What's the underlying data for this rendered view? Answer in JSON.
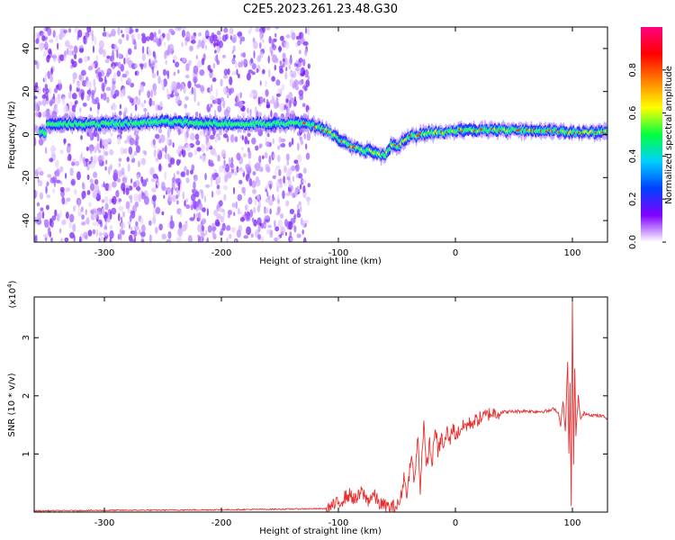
{
  "title": "C2E5.2023.261.23.48.G30",
  "chart_data": [
    {
      "type": "heatmap",
      "xlabel": "Height of straight line (km)",
      "ylabel": "Frequency (Hz)",
      "xlim": [
        -360,
        130
      ],
      "ylim": [
        -50,
        50
      ],
      "xticks": [
        -300,
        -200,
        -100,
        0,
        100
      ],
      "yticks": [
        -40,
        -20,
        0,
        20,
        40
      ],
      "colorbar": {
        "label": "Normalized spectral amplitude",
        "range": [
          0,
          1
        ],
        "ticks": [
          "0.0",
          "0.2",
          "0.4",
          "0.6",
          "0.8"
        ],
        "tick_values": [
          0,
          0.2,
          0.4,
          0.6,
          0.8
        ],
        "colors": [
          "#ffffff",
          "#8000ff",
          "#0040ff",
          "#00d0ff",
          "#00ff40",
          "#ffff00",
          "#ff8000",
          "#ff0000",
          "#ff0080"
        ]
      },
      "ridge": {
        "x": [
          -350,
          -300,
          -250,
          -200,
          -150,
          -130,
          -120,
          -110,
          -100,
          -90,
          -80,
          -70,
          -60,
          -55,
          -50,
          -45,
          -40,
          -30,
          -20,
          -10,
          0,
          20,
          50,
          80,
          100,
          120,
          130
        ],
        "y": [
          5,
          5,
          6,
          5,
          5,
          5,
          4,
          2,
          -2,
          -5,
          -7,
          -8,
          -10,
          -5,
          -6,
          -3,
          -1,
          0,
          1,
          1,
          2,
          2,
          2,
          2,
          1,
          1,
          1
        ]
      },
      "noise_region": [
        -360,
        -125
      ]
    },
    {
      "type": "line",
      "xlabel": "Height of straight line (km)",
      "ylabel": "SNR (10 * v/v)",
      "yscale_label": "(x10",
      "yscale_exp": "4",
      "yscale_close": ")",
      "xlim": [
        -360,
        130
      ],
      "ylim": [
        0,
        3.7
      ],
      "xticks": [
        -300,
        -200,
        -100,
        0,
        100
      ],
      "yticks": [
        1,
        2,
        3
      ],
      "color": "#e83030",
      "x": [
        -360,
        -300,
        -200,
        -150,
        -110,
        -100,
        -95,
        -90,
        -85,
        -80,
        -75,
        -70,
        -65,
        -60,
        -55,
        -50,
        -47,
        -44,
        -41,
        -38,
        -35,
        -32,
        -30,
        -27,
        -25,
        -22,
        -20,
        -17,
        -15,
        -12,
        -10,
        -7,
        -5,
        -2,
        0,
        5,
        10,
        15,
        20,
        25,
        30,
        40,
        50,
        60,
        70,
        80,
        85,
        88,
        90,
        92,
        94,
        96,
        97,
        98,
        99,
        100,
        101,
        102,
        103,
        105,
        107,
        110,
        115,
        120,
        125,
        130
      ],
      "y": [
        0.02,
        0.03,
        0.04,
        0.05,
        0.06,
        0.15,
        0.25,
        0.3,
        0.2,
        0.35,
        0.2,
        0.3,
        0.15,
        0.1,
        0.08,
        0.1,
        0.2,
        0.6,
        0.3,
        1.0,
        0.5,
        1.3,
        0.4,
        1.6,
        0.7,
        1.2,
        0.8,
        1.5,
        1.0,
        1.3,
        1.1,
        1.4,
        1.2,
        1.5,
        1.3,
        1.45,
        1.5,
        1.55,
        1.6,
        1.65,
        1.7,
        1.72,
        1.73,
        1.74,
        1.73,
        1.74,
        1.78,
        1.7,
        1.5,
        1.9,
        1.4,
        2.6,
        1.0,
        2.2,
        0.1,
        3.7,
        0.8,
        2.5,
        1.3,
        2.0,
        1.6,
        1.7,
        1.68,
        1.66,
        1.65,
        1.62
      ]
    }
  ]
}
